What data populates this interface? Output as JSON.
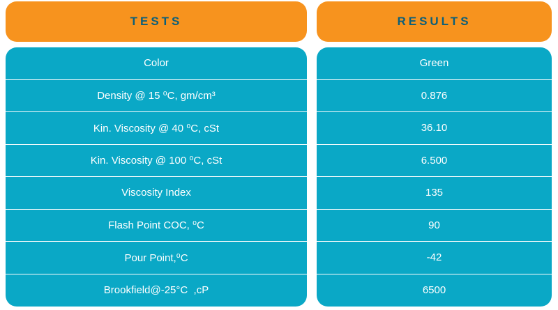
{
  "headers": {
    "tests": "TESTS",
    "results": "RESULTS"
  },
  "rows": [
    {
      "test": "Color",
      "result": "Green"
    },
    {
      "test": "Density @ 15 ⁰C, gm/cm³",
      "result": "0.876"
    },
    {
      "test": "Kin. Viscosity @ 40 ⁰C, cSt",
      "result": "36.10"
    },
    {
      "test": "Kin. Viscosity @ 100 ⁰C, cSt",
      "result": "6.500"
    },
    {
      "test": "Viscosity Index",
      "result": "135"
    },
    {
      "test": "Flash Point COC, ⁰C",
      "result": "90"
    },
    {
      "test": "Pour Point,⁰C",
      "result": "-42"
    },
    {
      "test": "Brookfield@-25°C  ,cP",
      "result": "6500"
    }
  ],
  "colors": {
    "header_bg": "#f7931e",
    "header_text": "#0b5f7a",
    "body_bg": "#0aa8c6",
    "body_text": "#ffffff"
  }
}
